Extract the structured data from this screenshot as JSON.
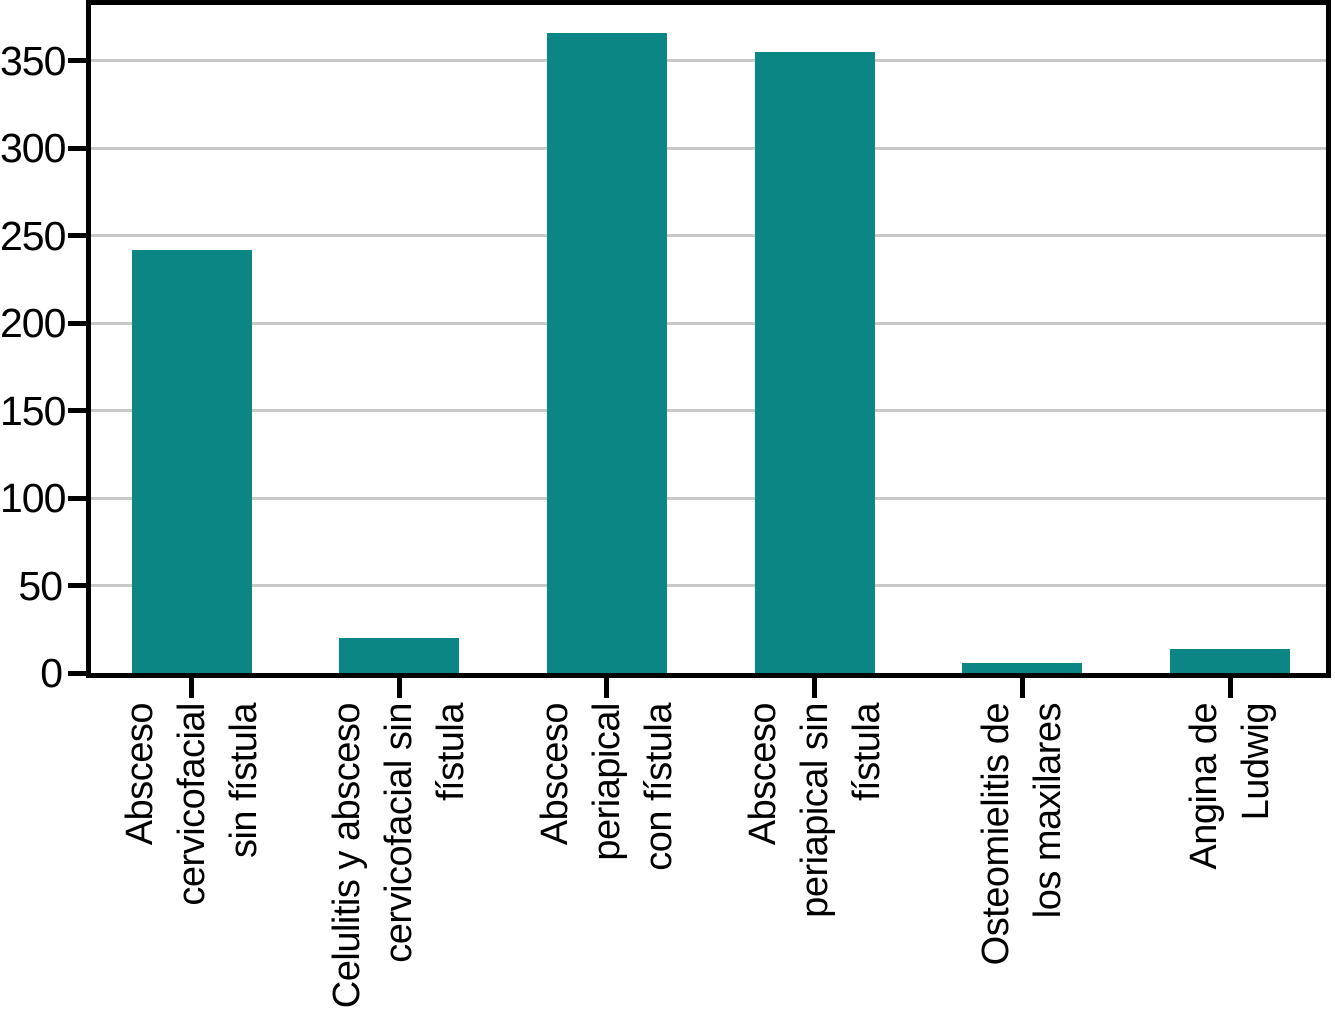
{
  "chart_data": {
    "type": "bar",
    "categories": [
      "Absceso\ncervicofacial\nsin fístula",
      "Celulitis y absceso\ncervicofacial sin\nfístula",
      "Absceso\nperiapical\ncon fístula",
      "Absceso\nperiapical sin\nfístula",
      "Osteomielitis de\nlos maxilares",
      "Angina de\nLudwig"
    ],
    "values": [
      242,
      20,
      366,
      355,
      6,
      14
    ],
    "title": "",
    "xlabel": "",
    "ylabel": "",
    "ylim": [
      0,
      382
    ],
    "yticks": [
      0,
      50,
      100,
      150,
      200,
      250,
      300,
      350
    ],
    "grid": true,
    "legend": "none",
    "bar_color": "#0c8684",
    "gridline_color": "#c8c8c8",
    "axis_color": "#000000"
  }
}
